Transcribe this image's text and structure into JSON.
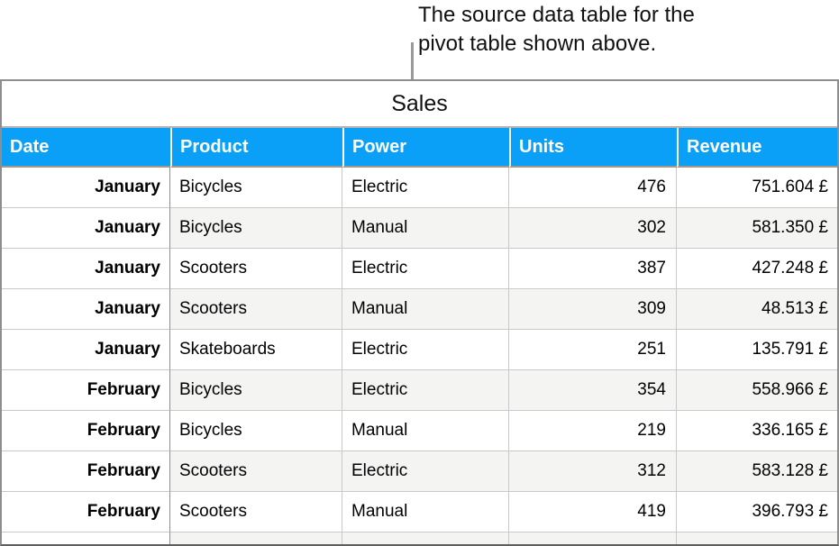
{
  "caption": {
    "line1": "The source data table for the",
    "line2": "pivot table shown above."
  },
  "table": {
    "title": "Sales",
    "columns": [
      "Date",
      "Product",
      "Power",
      "Units",
      "Revenue"
    ],
    "rows": [
      [
        "January",
        "Bicycles",
        "Electric",
        "476",
        "751.604 £"
      ],
      [
        "January",
        "Bicycles",
        "Manual",
        "302",
        "581.350 £"
      ],
      [
        "January",
        "Scooters",
        "Electric",
        "387",
        "427.248 £"
      ],
      [
        "January",
        "Scooters",
        "Manual",
        "309",
        "48.513 £"
      ],
      [
        "January",
        "Skateboards",
        "Electric",
        "251",
        "135.791 £"
      ],
      [
        "February",
        "Bicycles",
        "Electric",
        "354",
        "558.966 £"
      ],
      [
        "February",
        "Bicycles",
        "Manual",
        "219",
        "336.165 £"
      ],
      [
        "February",
        "Scooters",
        "Electric",
        "312",
        "583.128 £"
      ],
      [
        "February",
        "Scooters",
        "Manual",
        "419",
        "396.793 £"
      ]
    ]
  },
  "colors": {
    "header_bg": "#0ba0f8",
    "header_text": "#ffffff",
    "alt_row_bg": "#f4f4f3",
    "outer_border": "#8e8e8e",
    "grid_line": "#c9c9c9",
    "pointer_line": "#9a9a9a"
  }
}
